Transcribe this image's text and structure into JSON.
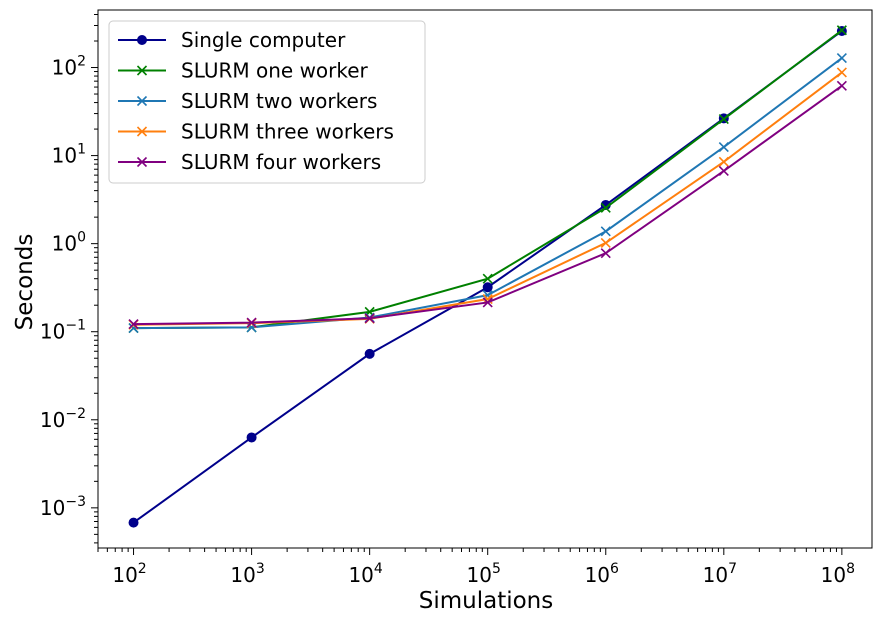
{
  "chart_data": {
    "type": "line",
    "xscale": "log",
    "yscale": "log",
    "xlabel": "Simulations",
    "ylabel": "Seconds",
    "xlim": [
      50,
      180000000
    ],
    "ylim": [
      0.00035,
      450
    ],
    "grid": false,
    "legend_position": "top-left",
    "xticks": [
      {
        "base": "10",
        "exp": "2",
        "value": 100
      },
      {
        "base": "10",
        "exp": "3",
        "value": 1000
      },
      {
        "base": "10",
        "exp": "4",
        "value": 10000
      },
      {
        "base": "10",
        "exp": "5",
        "value": 100000
      },
      {
        "base": "10",
        "exp": "6",
        "value": 1000000
      },
      {
        "base": "10",
        "exp": "7",
        "value": 10000000
      },
      {
        "base": "10",
        "exp": "8",
        "value": 100000000
      }
    ],
    "yticks": [
      {
        "base": "10",
        "exp": "−3",
        "value": 0.001
      },
      {
        "base": "10",
        "exp": "−2",
        "value": 0.01
      },
      {
        "base": "10",
        "exp": "−1",
        "value": 0.1
      },
      {
        "base": "10",
        "exp": "0",
        "value": 1
      },
      {
        "base": "10",
        "exp": "1",
        "value": 10
      },
      {
        "base": "10",
        "exp": "2",
        "value": 100
      }
    ],
    "x": [
      100,
      1000,
      10000,
      100000,
      1000000,
      10000000,
      100000000
    ],
    "series": [
      {
        "name": "Single computer",
        "color": "#00008b",
        "marker": "circle",
        "values": [
          0.00068,
          0.0063,
          0.056,
          0.32,
          2.75,
          26.5,
          260
        ]
      },
      {
        "name": "SLURM one worker",
        "color": "#008000",
        "marker": "x",
        "values": [
          0.11,
          0.112,
          0.168,
          0.4,
          2.55,
          26.0,
          265
        ]
      },
      {
        "name": "SLURM two workers",
        "color": "#1f77b4",
        "marker": "x",
        "values": [
          0.11,
          0.112,
          0.145,
          0.26,
          1.38,
          12.5,
          128
        ]
      },
      {
        "name": "SLURM three workers",
        "color": "#ff7f0e",
        "marker": "x",
        "values": [
          0.12,
          0.125,
          0.14,
          0.235,
          1.02,
          8.5,
          88
        ]
      },
      {
        "name": "SLURM four workers",
        "color": "#800080",
        "marker": "x",
        "values": [
          0.122,
          0.127,
          0.142,
          0.215,
          0.78,
          6.7,
          62
        ]
      }
    ]
  }
}
